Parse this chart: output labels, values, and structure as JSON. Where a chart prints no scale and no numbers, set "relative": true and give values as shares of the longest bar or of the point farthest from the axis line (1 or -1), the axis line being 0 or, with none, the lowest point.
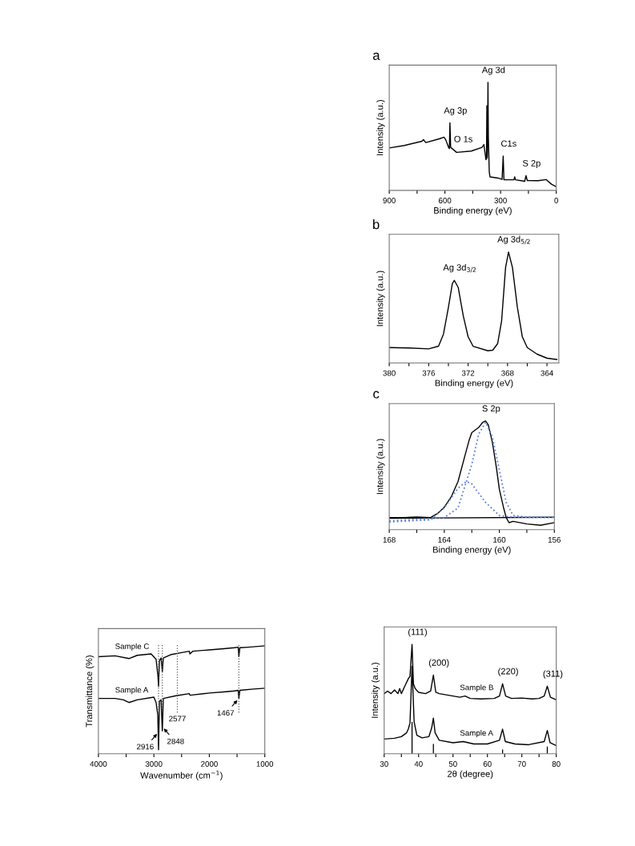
{
  "chart_data": [
    {
      "type": "line",
      "title": "a",
      "xlabel": "Binding energy (eV)",
      "ylabel": "Intensity (a.u.)",
      "relative": true,
      "tick_labels": "x",
      "xlim": [
        900,
        0
      ],
      "xticks": [
        900,
        {
          "value": 750,
          "label": null
        },
        600,
        {
          "value": 450,
          "label": null
        },
        300,
        {
          "value": 150,
          "label": null
        },
        0
      ],
      "series": [
        {
          "color": "#000000",
          "x": [
            900,
            818,
            724,
            716,
            703,
            631,
            605,
            595,
            580,
            576,
            573,
            569,
            537,
            458,
            400,
            390,
            379,
            376,
            374,
            372,
            370,
            368,
            366,
            361,
            357,
            314,
            292,
            286,
            282,
            228,
            224,
            220,
            170,
            163,
            156,
            98,
            55,
            26,
            0
          ],
          "values": [
            0.393,
            0.416,
            0.455,
            0.47,
            0.443,
            0.477,
            0.493,
            0.466,
            0.398,
            0.386,
            0.625,
            0.398,
            0.352,
            0.364,
            0.398,
            0.425,
            0.284,
            0.3,
            0.784,
            0.3,
            0.5,
            1,
            0.5,
            0.17,
            0.125,
            0.114,
            0.102,
            0.318,
            0.098,
            0.098,
            0.125,
            0.098,
            0.084,
            0.136,
            0.091,
            0.09,
            0.1,
            0.057,
            0.034
          ]
        }
      ],
      "annotations": [
        {
          "text": "Ag 3d",
          "x": 368,
          "y": 1
        },
        {
          "text": "Ag 3p",
          "x": 573,
          "y": 0.625
        },
        {
          "text": "O 1s",
          "x": 531,
          "y": 0.36
        },
        {
          "text": "C1s",
          "x": 286,
          "y": 0.318
        },
        {
          "text": "S 2p",
          "x": 163,
          "y": 0.136
        }
      ]
    },
    {
      "type": "line",
      "title": "b",
      "xlabel": "Binding energy (eV)",
      "ylabel": "Intensity (a.u.)",
      "relative": true,
      "tick_labels": "x",
      "xlim": [
        380,
        362.8
      ],
      "xticks": [
        380,
        {
          "value": 378,
          "label": null
        },
        376,
        {
          "value": 374,
          "label": null
        },
        372,
        {
          "value": 370,
          "label": null
        },
        368,
        {
          "value": 366,
          "label": null
        },
        364
      ],
      "series": [
        {
          "color": "#000000",
          "x": [
            380,
            378,
            376,
            375,
            374.5,
            374,
            373.6,
            373.4,
            373,
            372.5,
            372,
            371.5,
            370,
            369.5,
            369,
            368.6,
            368.2,
            367.9,
            367.5,
            367,
            366.5,
            366,
            365,
            364,
            363
          ],
          "values": [
            0.139,
            0.135,
            0.127,
            0.151,
            0.26,
            0.5,
            0.716,
            0.745,
            0.68,
            0.428,
            0.236,
            0.151,
            0.11,
            0.115,
            0.175,
            0.38,
            0.86,
            1,
            0.86,
            0.5,
            0.236,
            0.139,
            0.079,
            0.043,
            0.031
          ]
        }
      ],
      "annotations": [
        {
          "text": "Ag 3d$_{3/2}$",
          "x": 373.4,
          "y": 0.745
        },
        {
          "text": "Ag 3d$_{5/2}$",
          "x": 367.9,
          "y": 1
        }
      ]
    },
    {
      "type": "line",
      "title": "c",
      "xlabel": "Binding energy (eV)",
      "ylabel": "Intensity (a.u.)",
      "relative": true,
      "tick_labels": "x",
      "xlim": [
        168,
        156
      ],
      "xticks": [
        168,
        {
          "value": 166,
          "label": null
        },
        164,
        {
          "value": 162,
          "label": null
        },
        160,
        {
          "value": 158,
          "label": null
        },
        156
      ],
      "series": [
        {
          "color": "#000000",
          "x": [
            168,
            167,
            166,
            165,
            164.5,
            164,
            163.5,
            163,
            162.5,
            162.2,
            162,
            161.5,
            161.2,
            161,
            160.8,
            160.5,
            160.2,
            160,
            159.7,
            159.5,
            159.3,
            159,
            158,
            157,
            156
          ],
          "values": [
            0.111,
            0.111,
            0.116,
            0.111,
            0.147,
            0.206,
            0.3,
            0.443,
            0.68,
            0.82,
            0.893,
            0.94,
            0.988,
            1,
            0.964,
            0.8,
            0.56,
            0.372,
            0.206,
            0.111,
            0.064,
            0.076,
            0.052,
            0.04,
            0.064
          ]
        },
        {
          "color": "#000000",
          "x": [
            168,
            156
          ],
          "values": [
            0.104,
            0.114
          ]
        },
        {
          "color": "#5b7fd6",
          "line_style": "dotted",
          "x": [
            168,
            165,
            164,
            163,
            162.4,
            162,
            161,
            160,
            159,
            156
          ],
          "values": [
            0.07,
            0.09,
            0.2,
            0.38,
            0.443,
            0.42,
            0.25,
            0.13,
            0.115,
            0.114
          ]
        },
        {
          "color": "#5b7fd6",
          "line_style": "dotted",
          "x": [
            168,
            164,
            163,
            162,
            161.5,
            161,
            160.5,
            160,
            159.5,
            159,
            158,
            156
          ],
          "values": [
            0.08,
            0.11,
            0.2,
            0.6,
            0.88,
            0.988,
            0.85,
            0.55,
            0.25,
            0.13,
            0.114,
            0.11
          ]
        }
      ],
      "annotations": [
        {
          "text": "S 2p",
          "x": 161,
          "y": 1
        }
      ]
    },
    {
      "type": "line",
      "xlabel": "Wavenumber (cm$^{−1}$)",
      "ylabel": "Transmittance (%)",
      "relative": true,
      "tick_labels": "x",
      "xlim": [
        4000,
        1000
      ],
      "xticks": [
        4000,
        {
          "value": 3500,
          "label": null
        },
        3000,
        {
          "value": 2500,
          "label": null
        },
        2000,
        {
          "value": 1500,
          "label": null
        },
        1000
      ],
      "series": [
        {
          "name": "Sample C",
          "color": "#000000",
          "x": [
            4000,
            3700,
            3450,
            3300,
            3050,
            2960,
            2930,
            2916,
            2900,
            2870,
            2848,
            2830,
            2700,
            2500,
            2360,
            2350,
            2300,
            2000,
            1700,
            1550,
            1480,
            1467,
            1450,
            1300,
            1000
          ],
          "values": [
            0.9,
            0.9075,
            0.8825,
            0.9125,
            0.925,
            0.875,
            0.7375,
            0.625,
            0.8625,
            0.8875,
            0.7625,
            0.8875,
            0.9175,
            0.9375,
            0.95,
            0.925,
            0.95,
            0.9625,
            0.975,
            0.9825,
            0.9875,
            0.9,
            0.9825,
            0.9875,
            1
          ]
        },
        {
          "name": "Sample A",
          "color": "#000000",
          "x": [
            4000,
            3700,
            3550,
            3450,
            3300,
            3000,
            2960,
            2930,
            2916,
            2900,
            2870,
            2848,
            2830,
            2600,
            2360,
            2350,
            2000,
            1700,
            1550,
            1480,
            1467,
            1450,
            1200,
            1000
          ],
          "values": [
            0.5125,
            0.5125,
            0.5,
            0.475,
            0.5,
            0.525,
            0.475,
            0.3625,
            0.0375,
            0.4875,
            0.5,
            0.2125,
            0.5125,
            0.5375,
            0.5575,
            0.5425,
            0.5625,
            0.575,
            0.5825,
            0.5875,
            0.5125,
            0.5875,
            0.6,
            0.6075
          ]
        }
      ],
      "ref_lines": [
        {
          "axis": "x",
          "value": 2916,
          "color": "#555555",
          "line_style": "dotted"
        },
        {
          "axis": "x",
          "value": 2848,
          "color": "#555555",
          "line_style": "dotted"
        },
        {
          "axis": "x",
          "value": 2577,
          "label": "2577",
          "color": "#555555",
          "line_style": "dotted"
        },
        {
          "axis": "x",
          "value": 1467,
          "color": "#555555",
          "line_style": "dotted"
        }
      ],
      "annotations": [
        {
          "text": "2916",
          "x": 2916,
          "y": 0.2
        },
        {
          "text": "2848",
          "x": 2848,
          "y": 0.25
        },
        {
          "text": "1467",
          "x": 1467,
          "y": 0.5125
        }
      ]
    },
    {
      "type": "line",
      "xlabel": "2θ (degree)",
      "ylabel": "Intensity (a.u.)",
      "relative": true,
      "tick_labels": "x",
      "xlim": [
        30,
        80
      ],
      "xticks": [
        30,
        {
          "value": 35,
          "label": null
        },
        40,
        {
          "value": 45,
          "label": null
        },
        50,
        {
          "value": 55,
          "label": null
        },
        60,
        {
          "value": 65,
          "label": null
        },
        70,
        {
          "value": 75,
          "label": null
        },
        80
      ],
      "series": [
        {
          "name": "Sample B",
          "color": "#000000",
          "x": [
            30,
            31,
            32,
            33,
            34,
            34.5,
            35,
            36,
            37,
            37.5,
            38.1,
            38.5,
            39,
            40,
            42,
            43.5,
            44.3,
            45,
            46,
            48,
            50,
            52,
            53.5,
            55,
            58,
            62,
            63.5,
            64.4,
            65.3,
            67,
            70,
            73,
            75,
            76.5,
            77.4,
            78.3,
            80
          ],
          "values": [
            0.55,
            0.573,
            0.55,
            0.584,
            0.55,
            0.596,
            0.55,
            0.618,
            0.685,
            0.708,
            1,
            0.64,
            0.596,
            0.562,
            0.55,
            0.573,
            0.719,
            0.562,
            0.55,
            0.539,
            0.528,
            0.517,
            0.528,
            0.506,
            0.501,
            0.506,
            0.528,
            0.64,
            0.528,
            0.506,
            0.51,
            0.501,
            0.506,
            0.528,
            0.618,
            0.517,
            0.494
          ]
        },
        {
          "name": "Sample A",
          "color": "#000000",
          "x": [
            30,
            33,
            35,
            36.5,
            37,
            37.5,
            38.1,
            38.7,
            39.5,
            41,
            43,
            43.8,
            44.3,
            44.8,
            46,
            50,
            53,
            56,
            60,
            63.5,
            64.4,
            65.2,
            68,
            72,
            76.5,
            77.4,
            78.2,
            80
          ],
          "values": [
            0.135,
            0.142,
            0.157,
            0.191,
            0.225,
            0.281,
            0.8,
            0.292,
            0.169,
            0.146,
            0.157,
            0.236,
            0.326,
            0.191,
            0.124,
            0.101,
            0.112,
            0.09,
            0.09,
            0.124,
            0.225,
            0.112,
            0.09,
            0.083,
            0.112,
            0.213,
            0.101,
            0.074
          ]
        },
        {
          "type": "bar",
          "color": "#000000",
          "x": [
            38.1,
            44.3,
            64.4,
            77.4
          ],
          "values": [
            0.292,
            0.09,
            0.038,
            0.067
          ]
        }
      ],
      "annotations": [
        {
          "text": "(111)",
          "x": 38.1,
          "y": 1
        },
        {
          "text": "(200)",
          "x": 44.3,
          "y": 0.719
        },
        {
          "text": "(220)",
          "x": 64.4,
          "y": 0.64
        },
        {
          "text": "(311)",
          "x": 77.4,
          "y": 0.618
        }
      ]
    }
  ]
}
